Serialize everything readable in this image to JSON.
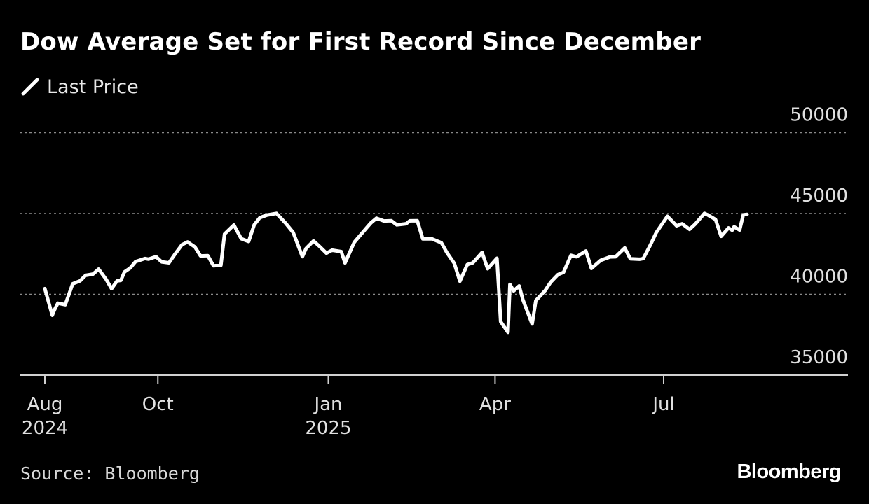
{
  "title": "Dow Average Set for First Record Since December",
  "source": "Source: Bloomberg",
  "brand": "Bloomberg",
  "colors": {
    "background": "#000000",
    "line": "#ffffff",
    "grid": "#8a8a8a",
    "text": "#ffffff"
  },
  "chart_data": {
    "type": "line",
    "title": "Dow Average Set for First Record Since December",
    "legend": [
      "Last Price"
    ],
    "legend_position": "top-left",
    "grid": true,
    "ylim": [
      35000,
      50000
    ],
    "yticks": [
      "50000",
      "45000",
      "40000",
      "35000"
    ],
    "xticks": [
      {
        "date": "2024-08-01",
        "label": "Aug",
        "sublabel": "2024"
      },
      {
        "date": "2024-10-01",
        "label": "Oct",
        "sublabel": ""
      },
      {
        "date": "2025-01-01",
        "label": "Jan",
        "sublabel": "2025"
      },
      {
        "date": "2025-04-01",
        "label": "Apr",
        "sublabel": ""
      },
      {
        "date": "2025-07-01",
        "label": "Jul",
        "sublabel": ""
      }
    ],
    "series": [
      {
        "name": "Last Price",
        "color": "#ffffff",
        "points": [
          [
            "2024-08-01",
            40350
          ],
          [
            "2024-08-05",
            38700
          ],
          [
            "2024-08-06",
            38990
          ],
          [
            "2024-08-08",
            39450
          ],
          [
            "2024-08-12",
            39360
          ],
          [
            "2024-08-14",
            40000
          ],
          [
            "2024-08-16",
            40650
          ],
          [
            "2024-08-20",
            40830
          ],
          [
            "2024-08-23",
            41175
          ],
          [
            "2024-08-27",
            41250
          ],
          [
            "2024-08-30",
            41560
          ],
          [
            "2024-09-03",
            40940
          ],
          [
            "2024-09-06",
            40345
          ],
          [
            "2024-09-09",
            40830
          ],
          [
            "2024-09-11",
            40860
          ],
          [
            "2024-09-13",
            41390
          ],
          [
            "2024-09-16",
            41620
          ],
          [
            "2024-09-19",
            42025
          ],
          [
            "2024-09-20",
            42060
          ],
          [
            "2024-09-24",
            42210
          ],
          [
            "2024-09-26",
            42175
          ],
          [
            "2024-09-30",
            42330
          ],
          [
            "2024-10-03",
            42010
          ],
          [
            "2024-10-07",
            41950
          ],
          [
            "2024-10-10",
            42450
          ],
          [
            "2024-10-14",
            43065
          ],
          [
            "2024-10-17",
            43240
          ],
          [
            "2024-10-21",
            42930
          ],
          [
            "2024-10-24",
            42375
          ],
          [
            "2024-10-28",
            42390
          ],
          [
            "2024-10-31",
            41760
          ],
          [
            "2024-11-04",
            41800
          ],
          [
            "2024-11-06",
            43730
          ],
          [
            "2024-11-11",
            44290
          ],
          [
            "2024-11-15",
            43440
          ],
          [
            "2024-11-19",
            43270
          ],
          [
            "2024-11-22",
            44300
          ],
          [
            "2024-11-25",
            44740
          ],
          [
            "2024-11-29",
            44910
          ],
          [
            "2024-12-04",
            45010
          ],
          [
            "2024-12-09",
            44400
          ],
          [
            "2024-12-13",
            43830
          ],
          [
            "2024-12-18",
            42330
          ],
          [
            "2024-12-20",
            42840
          ],
          [
            "2024-12-24",
            43300
          ],
          [
            "2024-12-27",
            42990
          ],
          [
            "2024-12-31",
            42545
          ],
          [
            "2025-01-03",
            42730
          ],
          [
            "2025-01-08",
            42640
          ],
          [
            "2025-01-10",
            41940
          ],
          [
            "2025-01-15",
            43220
          ],
          [
            "2025-01-17",
            43490
          ],
          [
            "2025-01-22",
            44160
          ],
          [
            "2025-01-24",
            44425
          ],
          [
            "2025-01-27",
            44710
          ],
          [
            "2025-01-31",
            44540
          ],
          [
            "2025-02-04",
            44560
          ],
          [
            "2025-02-07",
            44300
          ],
          [
            "2025-02-12",
            44370
          ],
          [
            "2025-02-14",
            44550
          ],
          [
            "2025-02-18",
            44560
          ],
          [
            "2025-02-21",
            43430
          ],
          [
            "2025-02-26",
            43430
          ],
          [
            "2025-03-03",
            43190
          ],
          [
            "2025-03-06",
            42580
          ],
          [
            "2025-03-10",
            41910
          ],
          [
            "2025-03-13",
            40810
          ],
          [
            "2025-03-17",
            41840
          ],
          [
            "2025-03-20",
            41950
          ],
          [
            "2025-03-25",
            42590
          ],
          [
            "2025-03-28",
            41580
          ],
          [
            "2025-04-02",
            42230
          ],
          [
            "2025-04-04",
            38310
          ],
          [
            "2025-04-08",
            37650
          ],
          [
            "2025-04-09",
            40610
          ],
          [
            "2025-04-11",
            40210
          ],
          [
            "2025-04-14",
            40520
          ],
          [
            "2025-04-16",
            39670
          ],
          [
            "2025-04-21",
            38170
          ],
          [
            "2025-04-23",
            39610
          ],
          [
            "2025-04-28",
            40230
          ],
          [
            "2025-05-01",
            40750
          ],
          [
            "2025-05-05",
            41220
          ],
          [
            "2025-05-08",
            41370
          ],
          [
            "2025-05-12",
            42410
          ],
          [
            "2025-05-15",
            42320
          ],
          [
            "2025-05-20",
            42680
          ],
          [
            "2025-05-23",
            41600
          ],
          [
            "2025-05-28",
            42100
          ],
          [
            "2025-06-02",
            42310
          ],
          [
            "2025-06-05",
            42320
          ],
          [
            "2025-06-10",
            42870
          ],
          [
            "2025-06-13",
            42200
          ],
          [
            "2025-06-18",
            42170
          ],
          [
            "2025-06-20",
            42210
          ],
          [
            "2025-06-24",
            43090
          ],
          [
            "2025-06-27",
            43820
          ],
          [
            "2025-07-03",
            44830
          ],
          [
            "2025-07-08",
            44240
          ],
          [
            "2025-07-11",
            44370
          ],
          [
            "2025-07-15",
            44020
          ],
          [
            "2025-07-18",
            44340
          ],
          [
            "2025-07-23",
            45010
          ],
          [
            "2025-07-25",
            44900
          ],
          [
            "2025-07-29",
            44630
          ],
          [
            "2025-08-01",
            43590
          ],
          [
            "2025-08-05",
            44110
          ],
          [
            "2025-08-07",
            43970
          ],
          [
            "2025-08-08",
            44180
          ],
          [
            "2025-08-11",
            43980
          ],
          [
            "2025-08-12",
            44460
          ],
          [
            "2025-08-13",
            44920
          ],
          [
            "2025-08-15",
            44950
          ]
        ]
      }
    ]
  }
}
